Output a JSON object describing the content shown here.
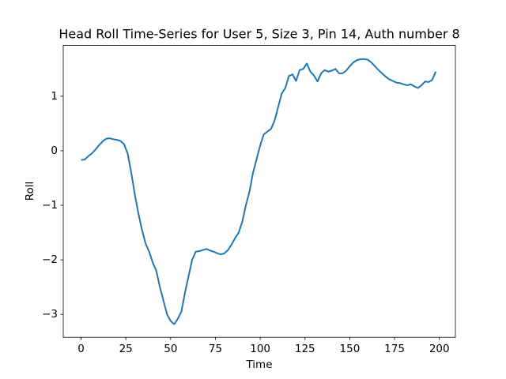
{
  "chart_data": {
    "type": "line",
    "title": "Head Roll Time-Series for User 5, Size 3, Pin 14, Auth number 8",
    "x_label": "Time",
    "y_label": "Roll",
    "x": [
      0,
      2,
      4,
      6,
      8,
      10,
      12,
      14,
      16,
      18,
      20,
      22,
      24,
      26,
      28,
      30,
      32,
      34,
      36,
      38,
      40,
      42,
      44,
      46,
      48,
      50,
      52,
      54,
      56,
      58,
      60,
      62,
      64,
      66,
      68,
      70,
      72,
      74,
      76,
      78,
      80,
      82,
      84,
      86,
      88,
      90,
      92,
      94,
      96,
      98,
      100,
      102,
      104,
      106,
      108,
      110,
      112,
      114,
      116,
      118,
      120,
      122,
      124,
      126,
      128,
      130,
      132,
      134,
      136,
      138,
      140,
      142,
      144,
      146,
      148,
      150,
      152,
      154,
      156,
      158,
      160,
      162,
      164,
      166,
      168,
      170,
      172,
      174,
      176,
      178,
      180,
      182,
      184,
      186,
      188,
      190,
      192,
      194,
      196,
      198
    ],
    "series": [
      {
        "name": "Roll",
        "color": "#1f77b4",
        "values": [
          -0.17,
          -0.16,
          -0.1,
          -0.05,
          0.02,
          0.1,
          0.17,
          0.22,
          0.23,
          0.21,
          0.2,
          0.18,
          0.12,
          -0.05,
          -0.4,
          -0.8,
          -1.15,
          -1.45,
          -1.7,
          -1.85,
          -2.05,
          -2.2,
          -2.5,
          -2.75,
          -3.0,
          -3.12,
          -3.18,
          -3.08,
          -2.95,
          -2.6,
          -2.3,
          -2.0,
          -1.85,
          -1.84,
          -1.82,
          -1.8,
          -1.83,
          -1.85,
          -1.88,
          -1.9,
          -1.88,
          -1.82,
          -1.72,
          -1.6,
          -1.5,
          -1.3,
          -1.0,
          -0.75,
          -0.4,
          -0.15,
          0.1,
          0.3,
          0.35,
          0.4,
          0.55,
          0.8,
          1.05,
          1.15,
          1.37,
          1.4,
          1.28,
          1.48,
          1.5,
          1.6,
          1.45,
          1.38,
          1.27,
          1.42,
          1.48,
          1.45,
          1.47,
          1.5,
          1.42,
          1.42,
          1.47,
          1.55,
          1.62,
          1.66,
          1.68,
          1.68,
          1.67,
          1.62,
          1.55,
          1.48,
          1.42,
          1.36,
          1.31,
          1.28,
          1.25,
          1.24,
          1.22,
          1.2,
          1.22,
          1.18,
          1.15,
          1.2,
          1.27,
          1.26,
          1.3,
          1.45
        ]
      }
    ],
    "xlim": [
      -9.95,
      208.95
    ],
    "ylim": [
      -3.42,
      1.93
    ],
    "xticks": [
      0,
      25,
      50,
      75,
      100,
      125,
      150,
      175,
      200
    ],
    "yticks": [
      {
        "value": -3,
        "label": "−3"
      },
      {
        "value": -2,
        "label": "−2"
      },
      {
        "value": -1,
        "label": "−1"
      },
      0,
      1
    ],
    "grid": false
  }
}
